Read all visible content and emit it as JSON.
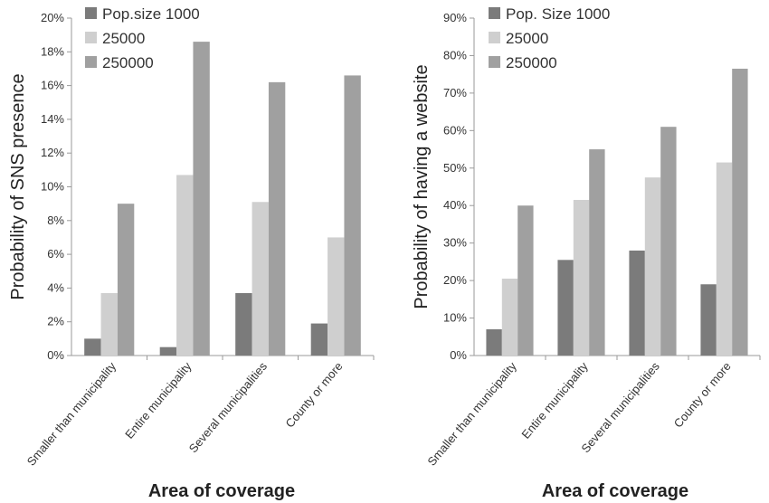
{
  "chart_data": [
    {
      "type": "bar",
      "categories": [
        "Smaller than municipality",
        "Entire municipality",
        "Several municipalities",
        "County or more"
      ],
      "series": [
        {
          "name": "Pop.size 1000",
          "values": [
            1.0,
            0.5,
            3.7,
            1.9
          ]
        },
        {
          "name": "25000",
          "values": [
            3.7,
            10.7,
            9.1,
            7.0
          ]
        },
        {
          "name": "250000",
          "values": [
            9.0,
            18.6,
            16.2,
            16.6
          ]
        }
      ],
      "series_colors": [
        "#7b7b7b",
        "#cfcfcf",
        "#a0a0a0"
      ],
      "ylabel": "Probability of SNS presence",
      "xlabel": "Area of coverage",
      "ylim": [
        0,
        20
      ],
      "yticks": [
        "0%",
        "2%",
        "4%",
        "6%",
        "8%",
        "10%",
        "12%",
        "14%",
        "16%",
        "18%",
        "20%"
      ],
      "legend": "top-left",
      "grid": false
    },
    {
      "type": "bar",
      "categories": [
        "Smaller than municipality",
        "Entire municipality",
        "Several municipalities",
        "County or more"
      ],
      "series": [
        {
          "name": "Pop. Size 1000",
          "values": [
            7,
            25.5,
            28,
            19
          ]
        },
        {
          "name": "25000",
          "values": [
            20.5,
            41.5,
            47.5,
            51.5
          ]
        },
        {
          "name": "250000",
          "values": [
            40,
            55,
            61,
            76.5
          ]
        }
      ],
      "series_colors": [
        "#7b7b7b",
        "#cfcfcf",
        "#a0a0a0"
      ],
      "ylabel": "Probability of having a website",
      "xlabel": "Area of coverage",
      "ylim": [
        0,
        90
      ],
      "yticks": [
        "0%",
        "10%",
        "20%",
        "30%",
        "40%",
        "50%",
        "60%",
        "70%",
        "80%",
        "90%"
      ],
      "legend": "top-left",
      "grid": false
    }
  ]
}
